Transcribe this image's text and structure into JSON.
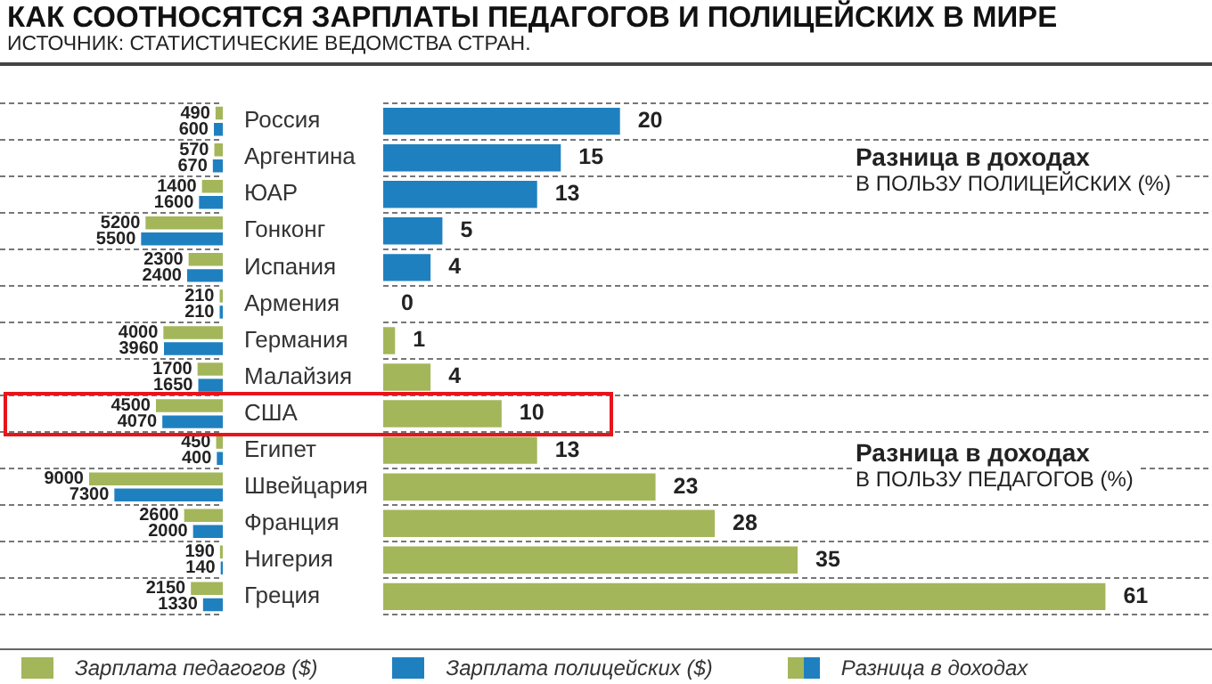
{
  "chart_data": [
    {
      "type": "bar",
      "orientation": "horizontal",
      "title": "КАК СООТНОСЯТСЯ ЗАРПЛАТЫ ПЕДАГОГОВ И ПОЛИЦЕЙСКИХ В МИРЕ",
      "subtitle": "ИСТОЧНИК: СТАТИСТИЧЕСКИЕ ВЕДОМСТВА СТРАН.",
      "categories": [
        "Россия",
        "Аргентина",
        "ЮАР",
        "Гонконг",
        "Испания",
        "Армения",
        "Германия",
        "Малайзия",
        "США",
        "Египет",
        "Швейцария",
        "Франция",
        "Нигерия",
        "Греция"
      ],
      "series": [
        {
          "name": "Зарплата педагогов ($)",
          "color": "#a3b65a",
          "values": [
            490,
            570,
            1400,
            5200,
            2300,
            210,
            4000,
            1700,
            4500,
            450,
            9000,
            2600,
            190,
            2150
          ]
        },
        {
          "name": "Зарплата полицейских ($)",
          "color": "#1f80c0",
          "values": [
            600,
            670,
            1600,
            5500,
            2400,
            210,
            3960,
            1650,
            4070,
            400,
            7300,
            2000,
            140,
            1330
          ]
        }
      ],
      "data_labels": true,
      "grid": "y",
      "legend": "bottom",
      "tick_labels": "y"
    },
    {
      "type": "bar",
      "orientation": "horizontal",
      "categories": [
        null,
        null,
        null,
        null,
        null,
        null,
        null,
        null,
        null,
        null,
        null,
        null,
        null,
        null
      ],
      "series": [
        {
          "name": "Разница в доходах",
          "values": [
            20,
            15,
            13,
            5,
            4,
            0,
            1,
            4,
            10,
            13,
            23,
            28,
            35,
            61
          ],
          "colors": [
            "#1f80c0",
            "#1f80c0",
            "#1f80c0",
            "#1f80c0",
            "#1f80c0",
            "#1f80c0",
            "#a3b65a",
            "#a3b65a",
            "#a3b65a",
            "#a3b65a",
            "#a3b65a",
            "#a3b65a",
            "#a3b65a",
            "#a3b65a"
          ]
        }
      ],
      "annotations": [
        "Разница в доходах\nВ ПОЛЬЗУ ПОЛИЦЕЙСКИХ (%)",
        "Разница в доходах\nВ ПОЛЬЗУ ПЕДАГОГОВ (%)"
      ],
      "data_labels": true,
      "grid": "y",
      "legend": "bottom",
      "tick_labels": false
    }
  ]
}
